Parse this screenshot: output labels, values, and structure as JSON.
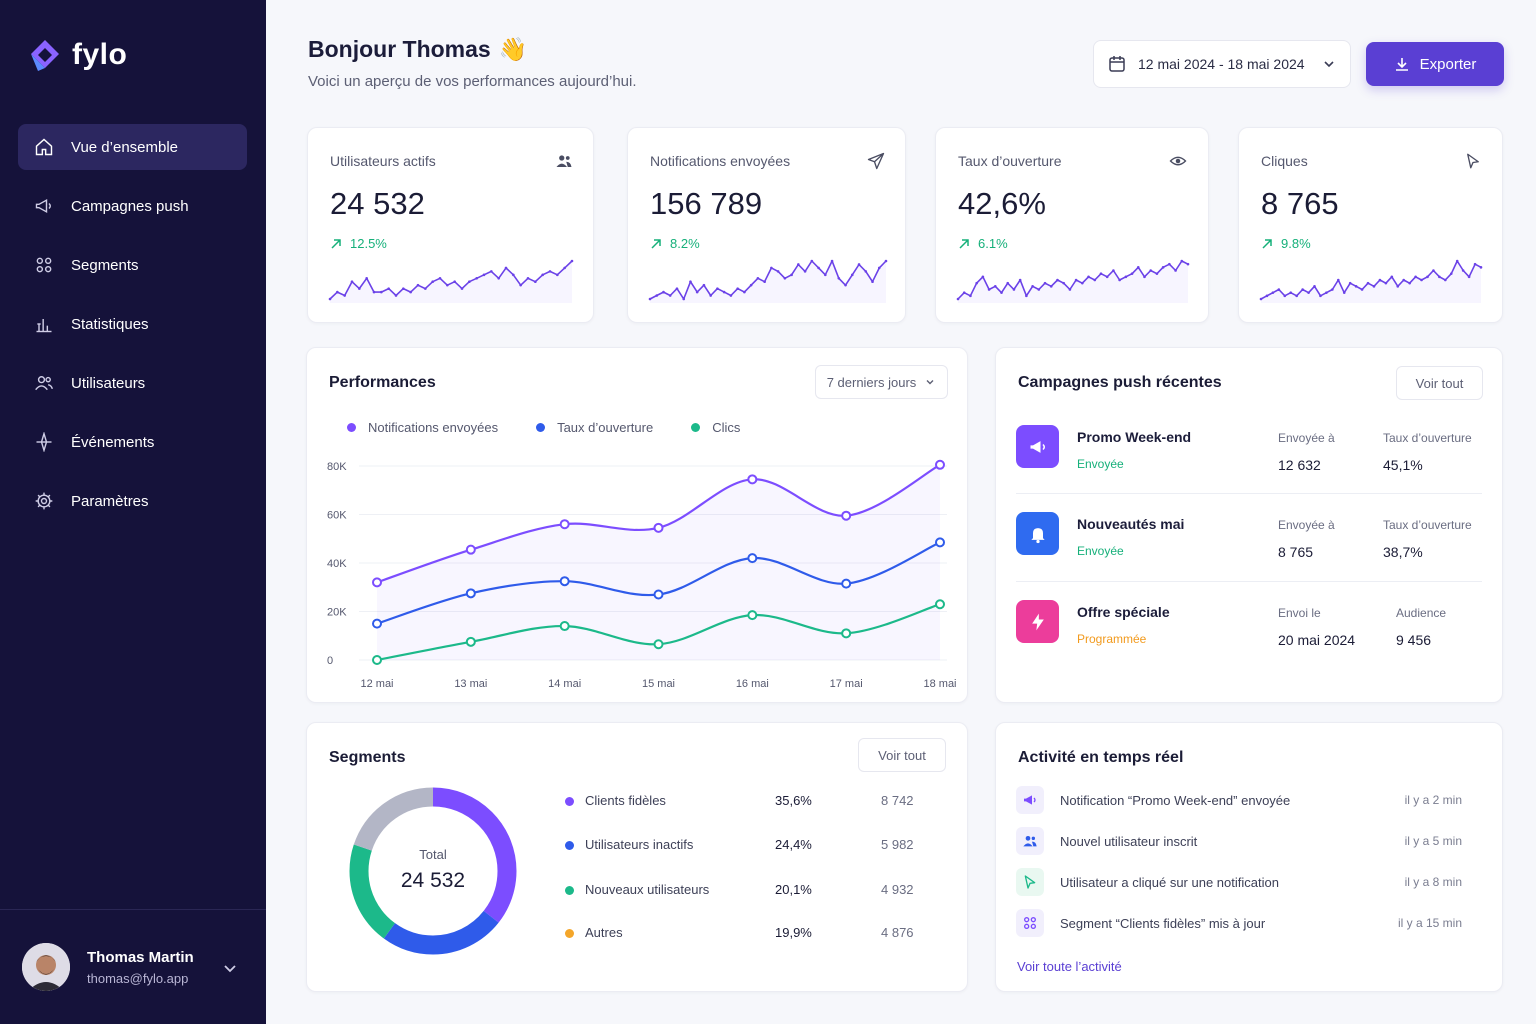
{
  "app": {
    "name": "fylo"
  },
  "sidebar": {
    "items": [
      {
        "label": "Vue d’ensemble",
        "icon": "home-icon"
      },
      {
        "label": "Campagnes push",
        "icon": "megaphone-icon"
      },
      {
        "label": "Segments",
        "icon": "segments-icon"
      },
      {
        "label": "Statistiques",
        "icon": "stats-icon"
      },
      {
        "label": "Utilisateurs",
        "icon": "users-icon"
      },
      {
        "label": "Événements",
        "icon": "events-icon"
      },
      {
        "label": "Paramètres",
        "icon": "gear-icon"
      }
    ],
    "user": {
      "name": "Thomas Martin",
      "email": "thomas@fylo.app"
    }
  },
  "header": {
    "greeting": "Bonjour Thomas",
    "emoji": "👋",
    "subtitle": "Voici un aperçu de vos performances aujourd’hui.",
    "date_range": "12 mai 2024 - 18 mai 2024",
    "export_label": "Exporter"
  },
  "kpis": [
    {
      "label": "Utilisateurs actifs",
      "value": "24 532",
      "trend": "12.5%",
      "icon": "users-icon",
      "spark": [
        3,
        5,
        4,
        8,
        6,
        9,
        5,
        5,
        6,
        4,
        6,
        5,
        7,
        6,
        8,
        9,
        7,
        8,
        6,
        8,
        9,
        10,
        11,
        9,
        12,
        10,
        7,
        9,
        8,
        10,
        11,
        10,
        12,
        14
      ]
    },
    {
      "label": "Notifications envoyées",
      "value": "156 789",
      "trend": "8.2%",
      "icon": "send-icon",
      "spark": [
        3,
        4,
        5,
        4,
        6,
        3,
        8,
        5,
        7,
        4,
        6,
        5,
        4,
        6,
        5,
        7,
        9,
        8,
        12,
        11,
        9,
        10,
        13,
        11,
        14,
        12,
        10,
        14,
        9,
        7,
        10,
        13,
        11,
        8,
        12,
        14
      ]
    },
    {
      "label": "Taux d’ouverture",
      "value": "42,6%",
      "trend": "6.1%",
      "icon": "eye-icon",
      "spark": [
        3,
        5,
        4,
        8,
        10,
        6,
        7,
        5,
        8,
        6,
        9,
        4,
        7,
        6,
        8,
        7,
        9,
        8,
        6,
        9,
        8,
        10,
        9,
        11,
        10,
        12,
        9,
        10,
        11,
        13,
        10,
        12,
        11,
        13,
        14,
        12,
        15,
        14
      ]
    },
    {
      "label": "Cliques",
      "value": "8 765",
      "trend": "9.8%",
      "icon": "cursor-icon",
      "spark": [
        3,
        4,
        5,
        6,
        4,
        5,
        4,
        6,
        5,
        7,
        4,
        5,
        6,
        9,
        5,
        8,
        7,
        6,
        8,
        7,
        9,
        8,
        10,
        7,
        9,
        8,
        10,
        9,
        10,
        12,
        10,
        9,
        11,
        15,
        12,
        10,
        14,
        13
      ]
    }
  ],
  "performance": {
    "title": "Performances",
    "range_select": "7 derniers jours",
    "legend": [
      {
        "name": "Notifications envoyées",
        "color": "#7c4dff"
      },
      {
        "name": "Taux d’ouverture",
        "color": "#2f5bea"
      },
      {
        "name": "Clics",
        "color": "#1cb98a"
      }
    ],
    "y_ticks": [
      "80K",
      "60K",
      "40K",
      "20K",
      "0"
    ]
  },
  "chart_data": {
    "type": "line",
    "categories": [
      "12 mai",
      "13 mai",
      "14 mai",
      "15 mai",
      "16 mai",
      "17 mai",
      "18 mai"
    ],
    "series": [
      {
        "name": "Notifications envoyées",
        "values": [
          32000,
          45500,
          56000,
          54500,
          74500,
          59500,
          80500
        ]
      },
      {
        "name": "Taux d’ouverture",
        "values": [
          15000,
          27500,
          32500,
          27000,
          42000,
          31500,
          48500
        ]
      },
      {
        "name": "Clics",
        "values": [
          0,
          7500,
          14000,
          6500,
          18500,
          11000,
          23000
        ]
      }
    ],
    "ylim": [
      0,
      80000
    ],
    "grid": true
  },
  "campaigns": {
    "title": "Campagnes push récentes",
    "see_all": "Voir tout",
    "items": [
      {
        "name": "Promo Week-end",
        "status": "Envoyée",
        "status_color": "#16b07a",
        "col1_label": "Envoyée à",
        "col1_value": "12 632",
        "col2_label": "Taux d’ouverture",
        "col2_value": "45,1%",
        "icon": "megaphone-icon",
        "icon_bg": "#7c4dff"
      },
      {
        "name": "Nouveautés mai",
        "status": "Envoyée",
        "status_color": "#16b07a",
        "col1_label": "Envoyée à",
        "col1_value": "8 765",
        "col2_label": "Taux d’ouverture",
        "col2_value": "38,7%",
        "icon": "bell-icon",
        "icon_bg": "#2f6bf0"
      },
      {
        "name": "Offre spéciale",
        "status": "Programmée",
        "status_color": "#f29a1d",
        "col1_label": "Envoi le",
        "col1_value": "20 mai 2024",
        "col2_label": "Audience",
        "col2_value": "9 456",
        "icon": "bolt-icon",
        "icon_bg": "#ec3d9b"
      }
    ]
  },
  "segments": {
    "title": "Segments",
    "see_all": "Voir tout",
    "total_label": "Total",
    "total_value": "24 532",
    "items": [
      {
        "name": "Clients fidèles",
        "pct": "35,6%",
        "count": "8 742",
        "share": 35.6,
        "color": "#7c4dff"
      },
      {
        "name": "Utilisateurs inactifs",
        "pct": "24,4%",
        "count": "5 982",
        "share": 24.4,
        "color": "#2f5bea"
      },
      {
        "name": "Nouveaux utilisateurs",
        "pct": "20,1%",
        "count": "4 932",
        "share": 20.1,
        "color": "#1cb98a"
      },
      {
        "name": "Autres",
        "pct": "19,9%",
        "count": "4 876",
        "share": 19.9,
        "color": "#f4a62a"
      }
    ],
    "donut_colors": [
      "#7c4dff",
      "#2f5bea",
      "#1cb98a",
      "#b3b6c6"
    ]
  },
  "activity": {
    "title": "Activité en temps réel",
    "link": "Voir toute l’activité",
    "items": [
      {
        "text": "Notification “Promo Week-end” envoyée",
        "time": "il y a 2 min",
        "icon": "megaphone-icon"
      },
      {
        "text": "Nouvel utilisateur inscrit",
        "time": "il y a 5 min",
        "icon": "users-icon"
      },
      {
        "text": "Utilisateur a cliqué sur une notification",
        "time": "il y a 8 min",
        "icon": "cursor-icon"
      },
      {
        "text": "Segment “Clients fidèles” mis à jour",
        "time": "il y a 15 min",
        "icon": "segments-icon"
      }
    ]
  }
}
